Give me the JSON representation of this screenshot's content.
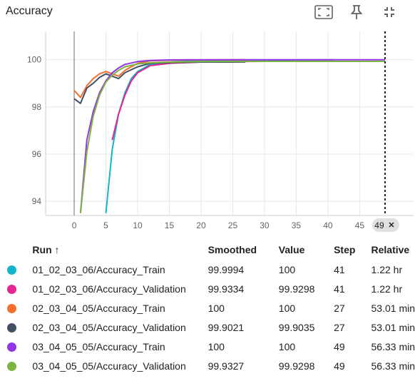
{
  "card": {
    "title": "Accuracy",
    "tools": {
      "fullscreen": "fullscreen-icon",
      "pin": "pin-icon",
      "collapse": "collapse-icon"
    }
  },
  "chart_data": {
    "type": "line",
    "title": "Accuracy",
    "xlabel": "",
    "ylabel": "",
    "x_ticks": [
      0,
      5,
      10,
      15,
      20,
      25,
      30,
      35,
      40,
      45
    ],
    "y_ticks": [
      94,
      96,
      98,
      100
    ],
    "xlim": [
      -4.5,
      53.5
    ],
    "ylim": [
      93.4,
      101.2
    ],
    "grid": true,
    "cursor": {
      "x": 49,
      "label": "49"
    },
    "series": [
      {
        "name": "01_02_03_06/Accuracy_Train",
        "color": "#12b5cb",
        "x": [
          5,
          6,
          7,
          8,
          9,
          10,
          12,
          15,
          20,
          25,
          30,
          35,
          41
        ],
        "y": [
          93.5,
          96.2,
          97.7,
          98.6,
          99.2,
          99.5,
          99.8,
          99.9,
          99.96,
          99.98,
          99.99,
          99.99,
          99.9994
        ]
      },
      {
        "name": "01_02_03_06/Accuracy_Validation",
        "color": "#e52592",
        "x": [
          6,
          7,
          8,
          9,
          10,
          12,
          15,
          20,
          25,
          30,
          35,
          41
        ],
        "y": [
          96.6,
          97.7,
          98.5,
          99.1,
          99.45,
          99.75,
          99.85,
          99.9,
          99.92,
          99.93,
          99.93,
          99.9334
        ]
      },
      {
        "name": "02_03_04_05/Accuracy_Train",
        "color": "#f46f2d",
        "x": [
          0,
          1,
          2,
          3,
          4,
          5,
          6,
          7,
          8,
          10,
          12,
          15,
          20,
          25,
          27
        ],
        "y": [
          98.7,
          98.4,
          98.9,
          99.2,
          99.4,
          99.5,
          99.4,
          99.3,
          99.55,
          99.85,
          99.95,
          99.98,
          99.99,
          100,
          100
        ]
      },
      {
        "name": "02_03_04_05/Accuracy_Validation",
        "color": "#425066",
        "x": [
          0,
          1,
          2,
          3,
          4,
          5,
          6,
          7,
          8,
          10,
          12,
          15,
          20,
          25,
          27
        ],
        "y": [
          98.35,
          98.15,
          98.8,
          99.0,
          99.25,
          99.4,
          99.3,
          99.2,
          99.45,
          99.7,
          99.85,
          99.88,
          99.9,
          99.9,
          99.9021
        ]
      },
      {
        "name": "03_04_05_05/Accuracy_Train",
        "color": "#9334e6",
        "x": [
          1,
          2,
          3,
          4,
          5,
          6,
          7,
          8,
          10,
          12,
          15,
          20,
          30,
          40,
          49
        ],
        "y": [
          93.5,
          96.6,
          97.8,
          98.6,
          99.1,
          99.45,
          99.65,
          99.8,
          99.92,
          99.97,
          99.99,
          100,
          100,
          100,
          100
        ]
      },
      {
        "name": "03_04_05_05/Accuracy_Validation",
        "color": "#7cb342",
        "x": [
          1,
          2,
          3,
          4,
          5,
          6,
          7,
          8,
          10,
          12,
          15,
          20,
          30,
          40,
          49
        ],
        "y": [
          93.5,
          96.1,
          97.6,
          98.5,
          99.05,
          99.35,
          99.55,
          99.7,
          99.82,
          99.87,
          99.9,
          99.92,
          99.93,
          99.93,
          99.9327
        ]
      }
    ]
  },
  "table": {
    "columns": [
      "Run",
      "Smoothed",
      "Value",
      "Step",
      "Relative"
    ],
    "sort_arrow": "↑",
    "rows": [
      {
        "color": "#12b5cb",
        "run": "01_02_03_06/Accuracy_Train",
        "smoothed": "99.9994",
        "value": "100",
        "step": "41",
        "relative": "1.22 hr"
      },
      {
        "color": "#e52592",
        "run": "01_02_03_06/Accuracy_Validation",
        "smoothed": "99.9334",
        "value": "99.9298",
        "step": "41",
        "relative": "1.22 hr"
      },
      {
        "color": "#f46f2d",
        "run": "02_03_04_05/Accuracy_Train",
        "smoothed": "100",
        "value": "100",
        "step": "27",
        "relative": "53.01 min"
      },
      {
        "color": "#425066",
        "run": "02_03_04_05/Accuracy_Validation",
        "smoothed": "99.9021",
        "value": "99.9035",
        "step": "27",
        "relative": "53.01 min"
      },
      {
        "color": "#9334e6",
        "run": "03_04_05_05/Accuracy_Train",
        "smoothed": "100",
        "value": "100",
        "step": "49",
        "relative": "56.33 min"
      },
      {
        "color": "#7cb342",
        "run": "03_04_05_05/Accuracy_Validation",
        "smoothed": "99.9327",
        "value": "99.9298",
        "step": "49",
        "relative": "56.33 min"
      }
    ]
  }
}
